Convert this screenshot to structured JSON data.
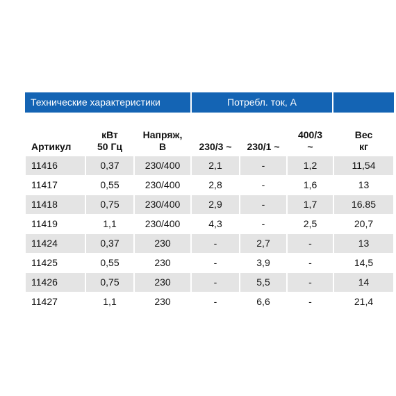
{
  "header": {
    "left": "Технические характеристики",
    "middle": "Потребл. ток, А"
  },
  "table": {
    "columns": [
      "Артикул",
      "кВт\n50 Гц",
      "Напряж,\nВ",
      "230/3 ~",
      "230/1 ~",
      "400/3\n~",
      "Вес\nкг"
    ],
    "rows": [
      [
        "11416",
        "0,37",
        "230/400",
        "2,1",
        "-",
        "1,2",
        "11,54"
      ],
      [
        "11417",
        "0,55",
        "230/400",
        "2,8",
        "-",
        "1,6",
        "13"
      ],
      [
        "11418",
        "0,75",
        "230/400",
        "2,9",
        "-",
        "1,7",
        "16.85"
      ],
      [
        "11419",
        "1,1",
        "230/400",
        "4,3",
        "-",
        "2,5",
        "20,7"
      ],
      [
        "11424",
        "0,37",
        "230",
        "-",
        "2,7",
        "-",
        "13"
      ],
      [
        "11425",
        "0,55",
        "230",
        "-",
        "3,9",
        "-",
        "14,5"
      ],
      [
        "11426",
        "0,75",
        "230",
        "-",
        "5,5",
        "-",
        "14"
      ],
      [
        "11427",
        "1,1",
        "230",
        "-",
        "6,6",
        "-",
        "21,4"
      ]
    ]
  }
}
